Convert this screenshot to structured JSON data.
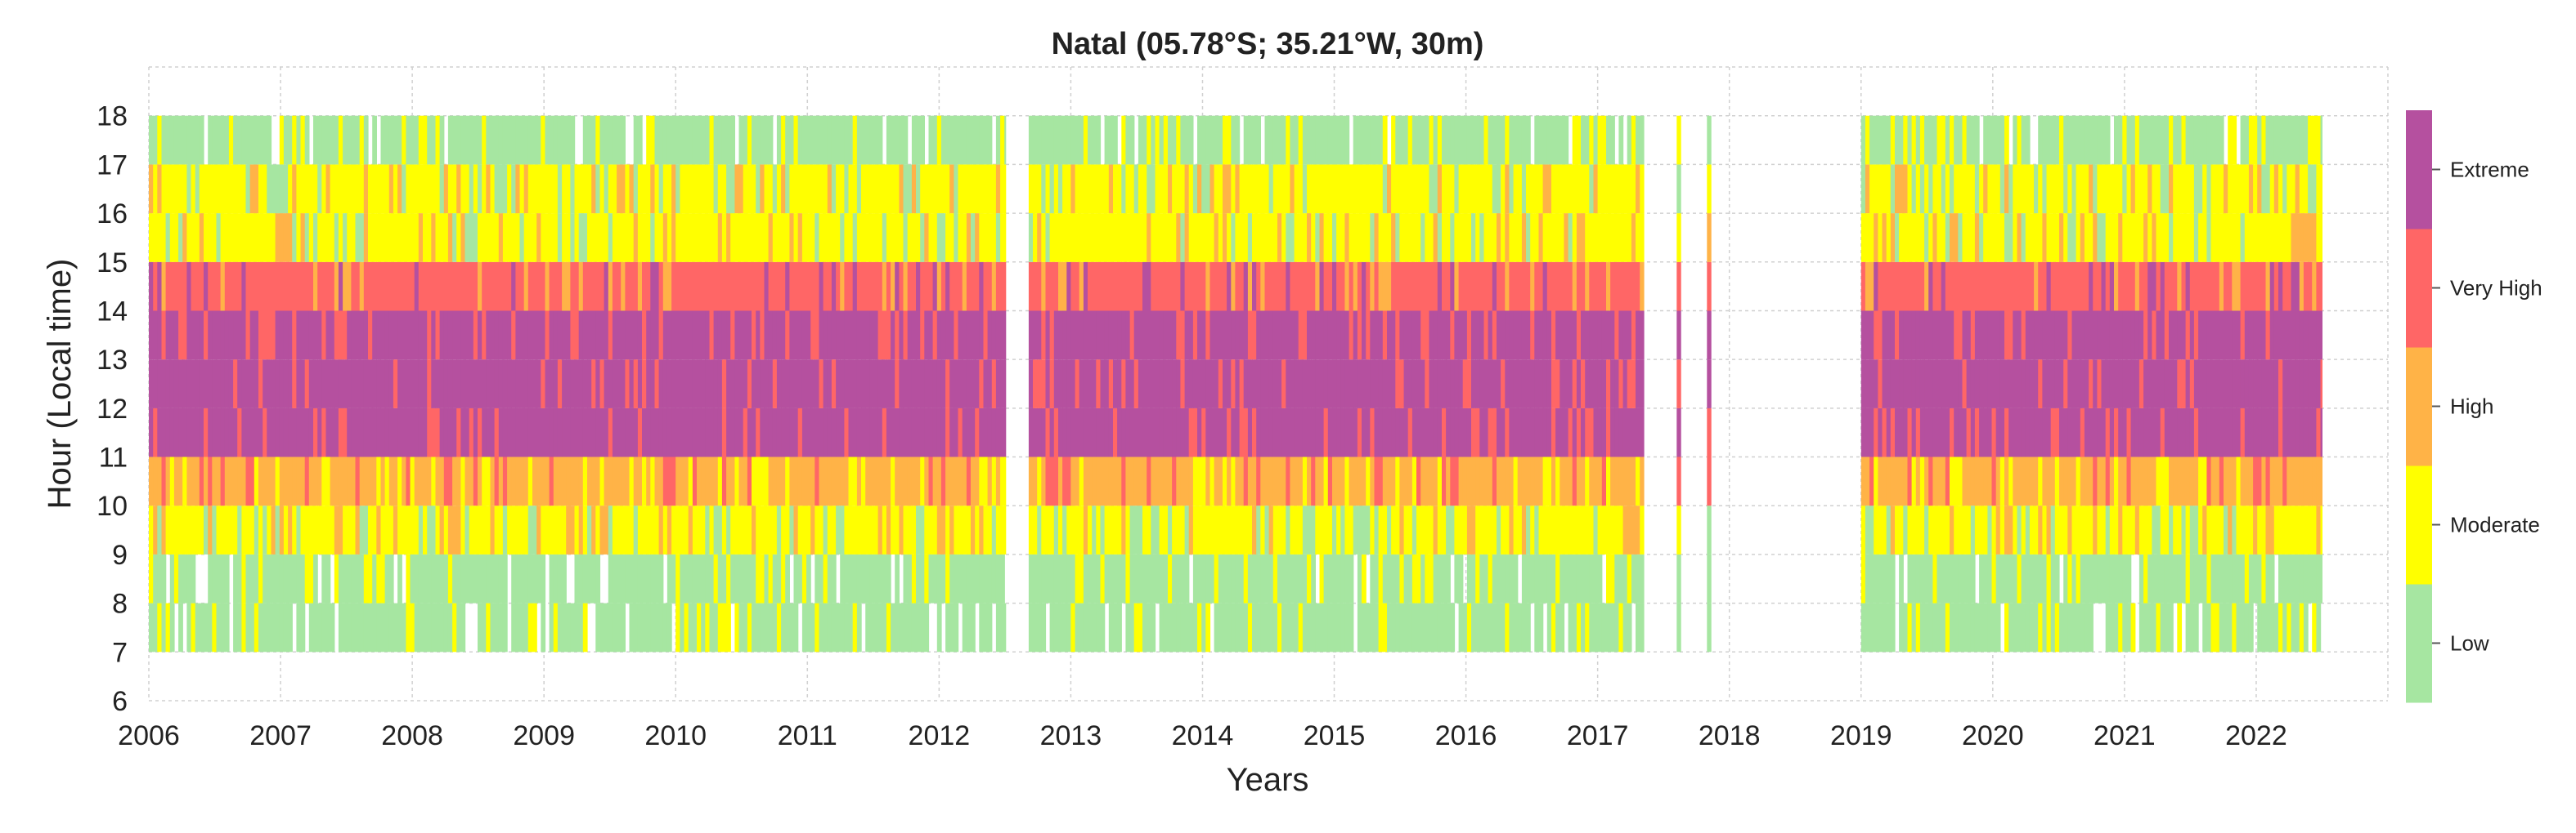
{
  "chart_data": {
    "type": "heatmap",
    "title": "Natal (05.78°S; 35.21°W, 30m)",
    "xlabel": "Years",
    "ylabel": "Hour (Local time)",
    "xlim": [
      2006,
      2023
    ],
    "ylim": [
      6,
      19
    ],
    "x_ticks": [
      "2006",
      "2007",
      "2008",
      "2009",
      "2010",
      "2011",
      "2012",
      "2013",
      "2014",
      "2015",
      "2016",
      "2017",
      "2018",
      "2019",
      "2020",
      "2021",
      "2022"
    ],
    "y_ticks": [
      "6",
      "7",
      "8",
      "9",
      "10",
      "11",
      "12",
      "13",
      "14",
      "15",
      "16",
      "17",
      "18"
    ],
    "grid": true,
    "colorbar": {
      "position": "right",
      "categories": [
        {
          "label": "Low",
          "color": "#a6e6a1"
        },
        {
          "label": "Moderate",
          "color": "#ffff00"
        },
        {
          "label": "High",
          "color": "#ffb347"
        },
        {
          "label": "Very High",
          "color": "#ff6666"
        },
        {
          "label": "Extreme",
          "color": "#b5509f"
        }
      ]
    },
    "data_periods": [
      {
        "start": 2006.0,
        "end": 2012.5
      },
      {
        "start": 2012.68,
        "end": 2017.35
      },
      {
        "start": 2017.6,
        "end": 2017.63
      },
      {
        "start": 2017.83,
        "end": 2017.86
      },
      {
        "start": 2019.0,
        "end": 2022.5
      }
    ],
    "hourly_typical_category": [
      {
        "hour": 7,
        "category": "Low"
      },
      {
        "hour": 8,
        "category": "Low"
      },
      {
        "hour": 9,
        "category": "Moderate"
      },
      {
        "hour": 10,
        "category": "High"
      },
      {
        "hour": 11,
        "category": "Extreme"
      },
      {
        "hour": 12,
        "category": "Extreme"
      },
      {
        "hour": 13,
        "category": "Extreme"
      },
      {
        "hour": 14,
        "category": "Very High"
      },
      {
        "hour": 15,
        "category": "Moderate"
      },
      {
        "hour": 16,
        "category": "Moderate"
      },
      {
        "hour": 17,
        "category": "Low"
      }
    ]
  }
}
